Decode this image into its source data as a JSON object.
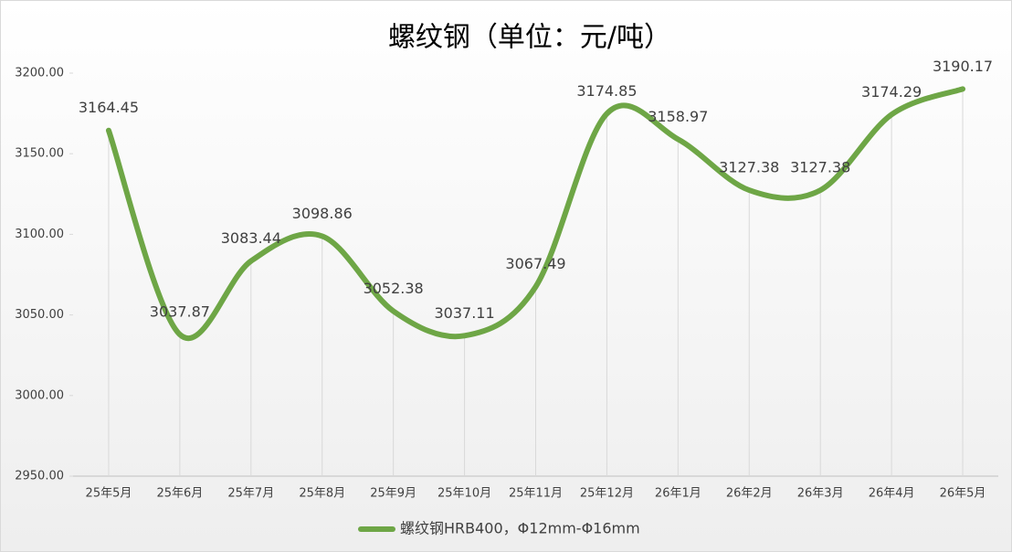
{
  "chart_data": {
    "type": "line",
    "title": "螺纹钢（单位：元/吨）",
    "categories": [
      "25年5月",
      "25年6月",
      "25年7月",
      "25年8月",
      "25年9月",
      "25年10月",
      "25年11月",
      "25年12月",
      "26年1月",
      "26年2月",
      "26年3月",
      "26年4月",
      "26年5月"
    ],
    "series": [
      {
        "name": "螺纹钢HRB400，Φ12mm-Φ16mm",
        "color": "#6ea646",
        "values": [
          3164.45,
          3037.87,
          3083.44,
          3098.86,
          3052.38,
          3037.11,
          3067.49,
          3174.85,
          3158.97,
          3127.38,
          3127.38,
          3174.29,
          3190.17
        ]
      }
    ],
    "ylim": [
      2950,
      3200
    ],
    "yticks": [
      {
        "value": 2950,
        "label": "2950.00"
      },
      {
        "value": 3000,
        "label": "3000.00"
      },
      {
        "value": 3050,
        "label": "3050.00"
      },
      {
        "value": 3100,
        "label": "3100.00"
      },
      {
        "value": 3150,
        "label": "3150.00"
      },
      {
        "value": 3200,
        "label": "3200.00"
      }
    ],
    "smooth": true,
    "legend": "bottom"
  }
}
